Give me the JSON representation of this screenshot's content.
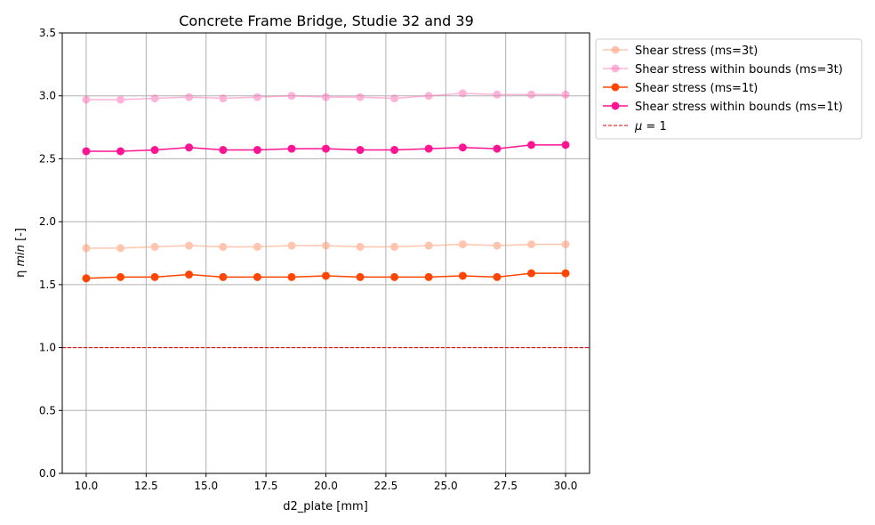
{
  "chart_data": {
    "type": "line",
    "title": "Concrete Frame Bridge, Studie 32 and 39",
    "xlabel": "d2_plate [mm]",
    "ylabel_prefix": "η ",
    "ylabel_italic": "min",
    "ylabel_suffix": " [-]",
    "xlim": [
      9.0,
      31.0
    ],
    "ylim": [
      0.0,
      3.5
    ],
    "xticks": [
      10.0,
      12.5,
      15.0,
      17.5,
      20.0,
      22.5,
      25.0,
      27.5,
      30.0
    ],
    "xtick_labels": [
      "10.0",
      "12.5",
      "15.0",
      "17.5",
      "20.0",
      "22.5",
      "25.0",
      "27.5",
      "30.0"
    ],
    "yticks": [
      0.0,
      0.5,
      1.0,
      1.5,
      2.0,
      2.5,
      3.0,
      3.5
    ],
    "ytick_labels": [
      "0.0",
      "0.5",
      "1.0",
      "1.5",
      "2.0",
      "2.5",
      "3.0",
      "3.5"
    ],
    "grid": true,
    "legend_position": "outside-top-right",
    "x": [
      10.0,
      11.43,
      12.86,
      14.29,
      15.71,
      17.14,
      18.57,
      20.0,
      21.43,
      22.86,
      24.29,
      25.71,
      27.14,
      28.57,
      30.0
    ],
    "series": [
      {
        "name": "Shear stress (ms=3t)",
        "color": "#FFA07A",
        "opacity": 0.6,
        "values": [
          1.79,
          1.79,
          1.8,
          1.81,
          1.8,
          1.8,
          1.81,
          1.81,
          1.8,
          1.8,
          1.81,
          1.82,
          1.81,
          1.82,
          1.82
        ]
      },
      {
        "name": "Shear stress within bounds (ms=3t)",
        "color": "#FF69B4",
        "opacity": 0.5,
        "values": [
          2.97,
          2.97,
          2.98,
          2.99,
          2.98,
          2.99,
          3.0,
          2.99,
          2.99,
          2.98,
          3.0,
          3.02,
          3.01,
          3.01,
          3.01
        ]
      },
      {
        "name": "Shear stress (ms=1t)",
        "color": "#FF4500",
        "opacity": 1.0,
        "values": [
          1.55,
          1.56,
          1.56,
          1.58,
          1.56,
          1.56,
          1.56,
          1.57,
          1.56,
          1.56,
          1.56,
          1.57,
          1.56,
          1.59,
          1.59
        ]
      },
      {
        "name": "Shear stress within bounds (ms=1t)",
        "color": "#FF1493",
        "opacity": 1.0,
        "values": [
          2.56,
          2.56,
          2.57,
          2.59,
          2.57,
          2.57,
          2.58,
          2.58,
          2.57,
          2.57,
          2.58,
          2.59,
          2.58,
          2.61,
          2.61
        ]
      }
    ],
    "reference_line": {
      "label_prefix": "μ",
      "label_suffix": " = 1",
      "value": 1.0,
      "color": "#DD0000",
      "style": "dashed"
    }
  }
}
